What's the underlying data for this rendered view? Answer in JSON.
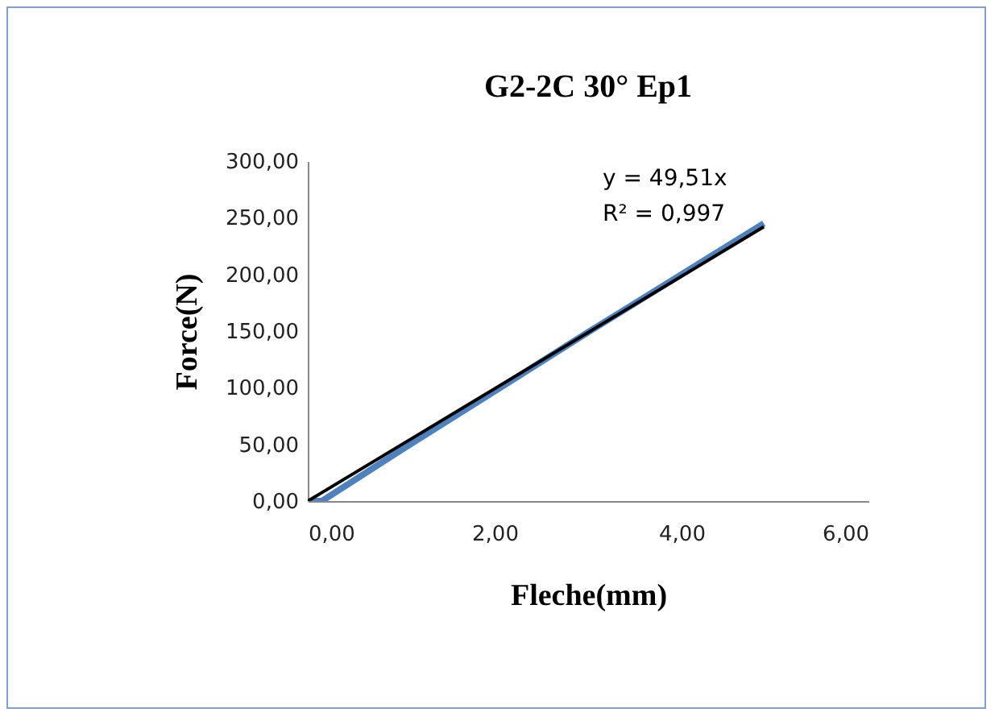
{
  "chart_data": {
    "type": "line",
    "title": "G2-2C 30° Ep1",
    "xlabel": "Fleche(mm)",
    "ylabel": "Force(N)",
    "xlim": [
      0,
      6
    ],
    "xticks": [
      {
        "value": 0,
        "label": "0,00"
      },
      {
        "value": 2,
        "label": "2,00"
      },
      {
        "value": 4,
        "label": "4,00"
      },
      {
        "value": 6,
        "label": "6,00"
      }
    ],
    "ylim": [
      0,
      300
    ],
    "yticks": [
      {
        "value": 0,
        "label": "0,00"
      },
      {
        "value": 50,
        "label": "50,00"
      },
      {
        "value": 100,
        "label": "100,00"
      },
      {
        "value": 150,
        "label": "150,00"
      },
      {
        "value": 200,
        "label": "200,00"
      },
      {
        "value": 250,
        "label": "250,00"
      },
      {
        "value": 300,
        "label": "300,00"
      }
    ],
    "grid": false,
    "marker": "none",
    "line_style": "solid",
    "annotations": [
      "y = 49,51x",
      "R² = 0,997"
    ],
    "series": [
      {
        "color": "#4f81bd",
        "x": [
          0,
          0.15,
          1,
          2,
          3,
          4,
          4.88
        ],
        "values": [
          0,
          0,
          45,
          97,
          149,
          200,
          245
        ]
      },
      {
        "color": "#000000",
        "x": [
          0,
          4.88
        ],
        "values": [
          0,
          242
        ]
      }
    ]
  }
}
